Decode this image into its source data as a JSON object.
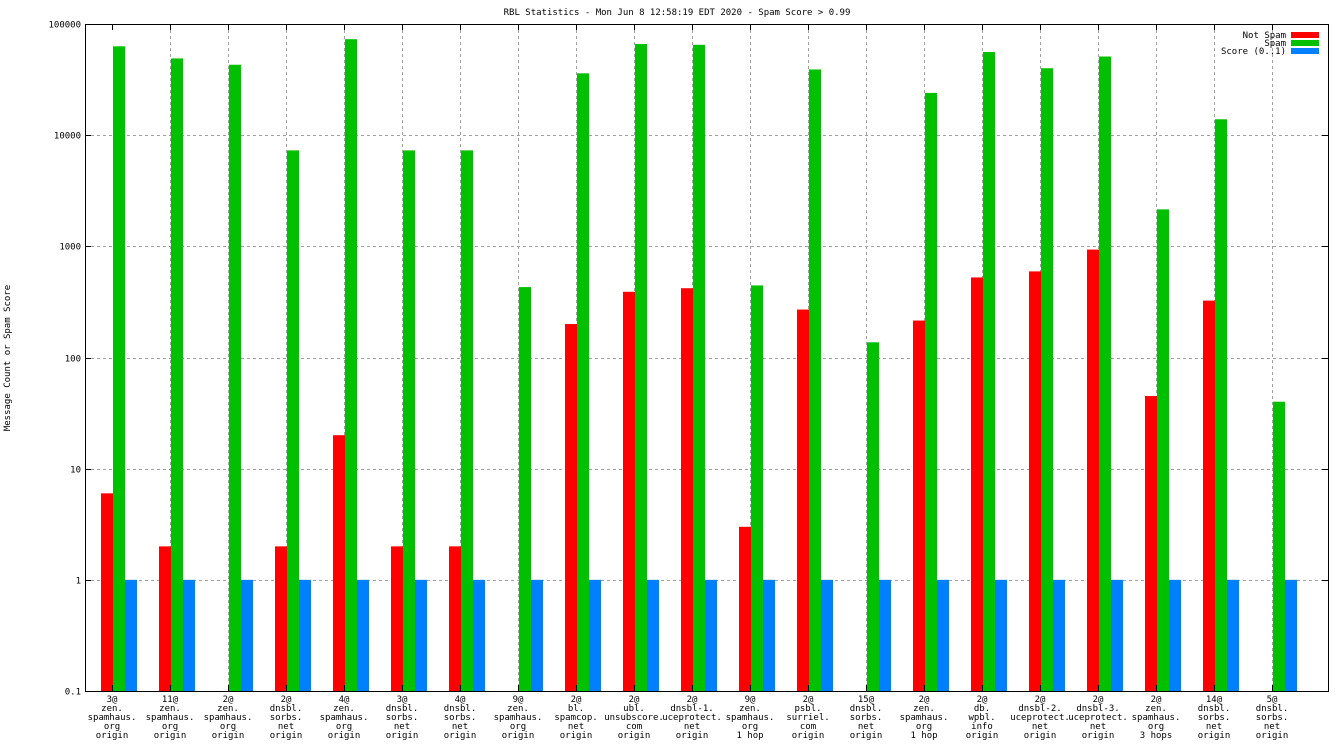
{
  "chart_data": {
    "type": "bar",
    "title": "RBL Statistics - Mon Jun  8 12:58:19 EDT 2020 - Spam Score > 0.99",
    "xlabel": "",
    "ylabel": "Message Count or Spam Score",
    "yscale": "log",
    "ylim": [
      0.1,
      100000
    ],
    "yticks": [
      "100000",
      "10000",
      "1000",
      "100",
      "10",
      "1",
      "0.1"
    ],
    "ytick_values": [
      100000,
      10000,
      1000,
      100,
      10,
      1,
      0.1
    ],
    "grid": true,
    "legend_position": "top-right",
    "categories": [
      [
        "3@",
        "zen.",
        "spamhaus.",
        "org",
        "origin"
      ],
      [
        "11@",
        "zen.",
        "spamhaus.",
        "org",
        "origin"
      ],
      [
        "2@",
        "zen.",
        "spamhaus.",
        "org",
        "origin"
      ],
      [
        "2@",
        "dnsbl.",
        "sorbs.",
        "net",
        "origin"
      ],
      [
        "4@",
        "zen.",
        "spamhaus.",
        "org",
        "origin"
      ],
      [
        "3@",
        "dnsbl.",
        "sorbs.",
        "net",
        "origin"
      ],
      [
        "4@",
        "dnsbl.",
        "sorbs.",
        "net",
        "origin"
      ],
      [
        "9@",
        "zen.",
        "spamhaus.",
        "org",
        "origin"
      ],
      [
        "2@",
        "bl.",
        "spamcop.",
        "net",
        "origin"
      ],
      [
        "2@",
        "ubl.",
        "unsubscore.",
        "com",
        "origin"
      ],
      [
        "2@",
        "dnsbl-1.",
        "uceprotect.",
        "net",
        "origin"
      ],
      [
        "9@",
        "zen.",
        "spamhaus.",
        "org",
        "1 hop"
      ],
      [
        "2@",
        "psbl.",
        "surriel.",
        "com",
        "origin"
      ],
      [
        "15@",
        "dnsbl.",
        "sorbs.",
        "net",
        "origin"
      ],
      [
        "2@",
        "zen.",
        "spamhaus.",
        "org",
        "1 hop"
      ],
      [
        "2@",
        "db.",
        "wpbl.",
        "info",
        "origin"
      ],
      [
        "2@",
        "dnsbl-2.",
        "uceprotect.",
        "net",
        "origin"
      ],
      [
        "2@",
        "dnsbl-3.",
        "uceprotect.",
        "net",
        "origin"
      ],
      [
        "2@",
        "zen.",
        "spamhaus.",
        "org",
        "3 hops"
      ],
      [
        "14@",
        "dnsbl.",
        "sorbs.",
        "net",
        "origin"
      ],
      [
        "5@",
        "dnsbl.",
        "sorbs.",
        "net",
        "origin"
      ]
    ],
    "series": [
      {
        "name": "Not Spam",
        "color": "#ff0000",
        "values": [
          6,
          2,
          null,
          2,
          20,
          2,
          2,
          null,
          200,
          390,
          420,
          3,
          270,
          null,
          215,
          525,
          595,
          935,
          45,
          325,
          null
        ]
      },
      {
        "name": "Spam",
        "color": "#00c000",
        "values": [
          63000,
          49000,
          43000,
          7300,
          73000,
          7300,
          7300,
          430,
          36000,
          66000,
          65000,
          445,
          39000,
          137,
          24000,
          56000,
          40000,
          51000,
          2150,
          13900,
          40
        ]
      },
      {
        "name": "Score (0..1)",
        "color": "#0080ff",
        "values": [
          1,
          1,
          1,
          1,
          1,
          1,
          1,
          1,
          1,
          1,
          1,
          1,
          1,
          1,
          1,
          1,
          1,
          1,
          1,
          1,
          1
        ]
      }
    ]
  }
}
